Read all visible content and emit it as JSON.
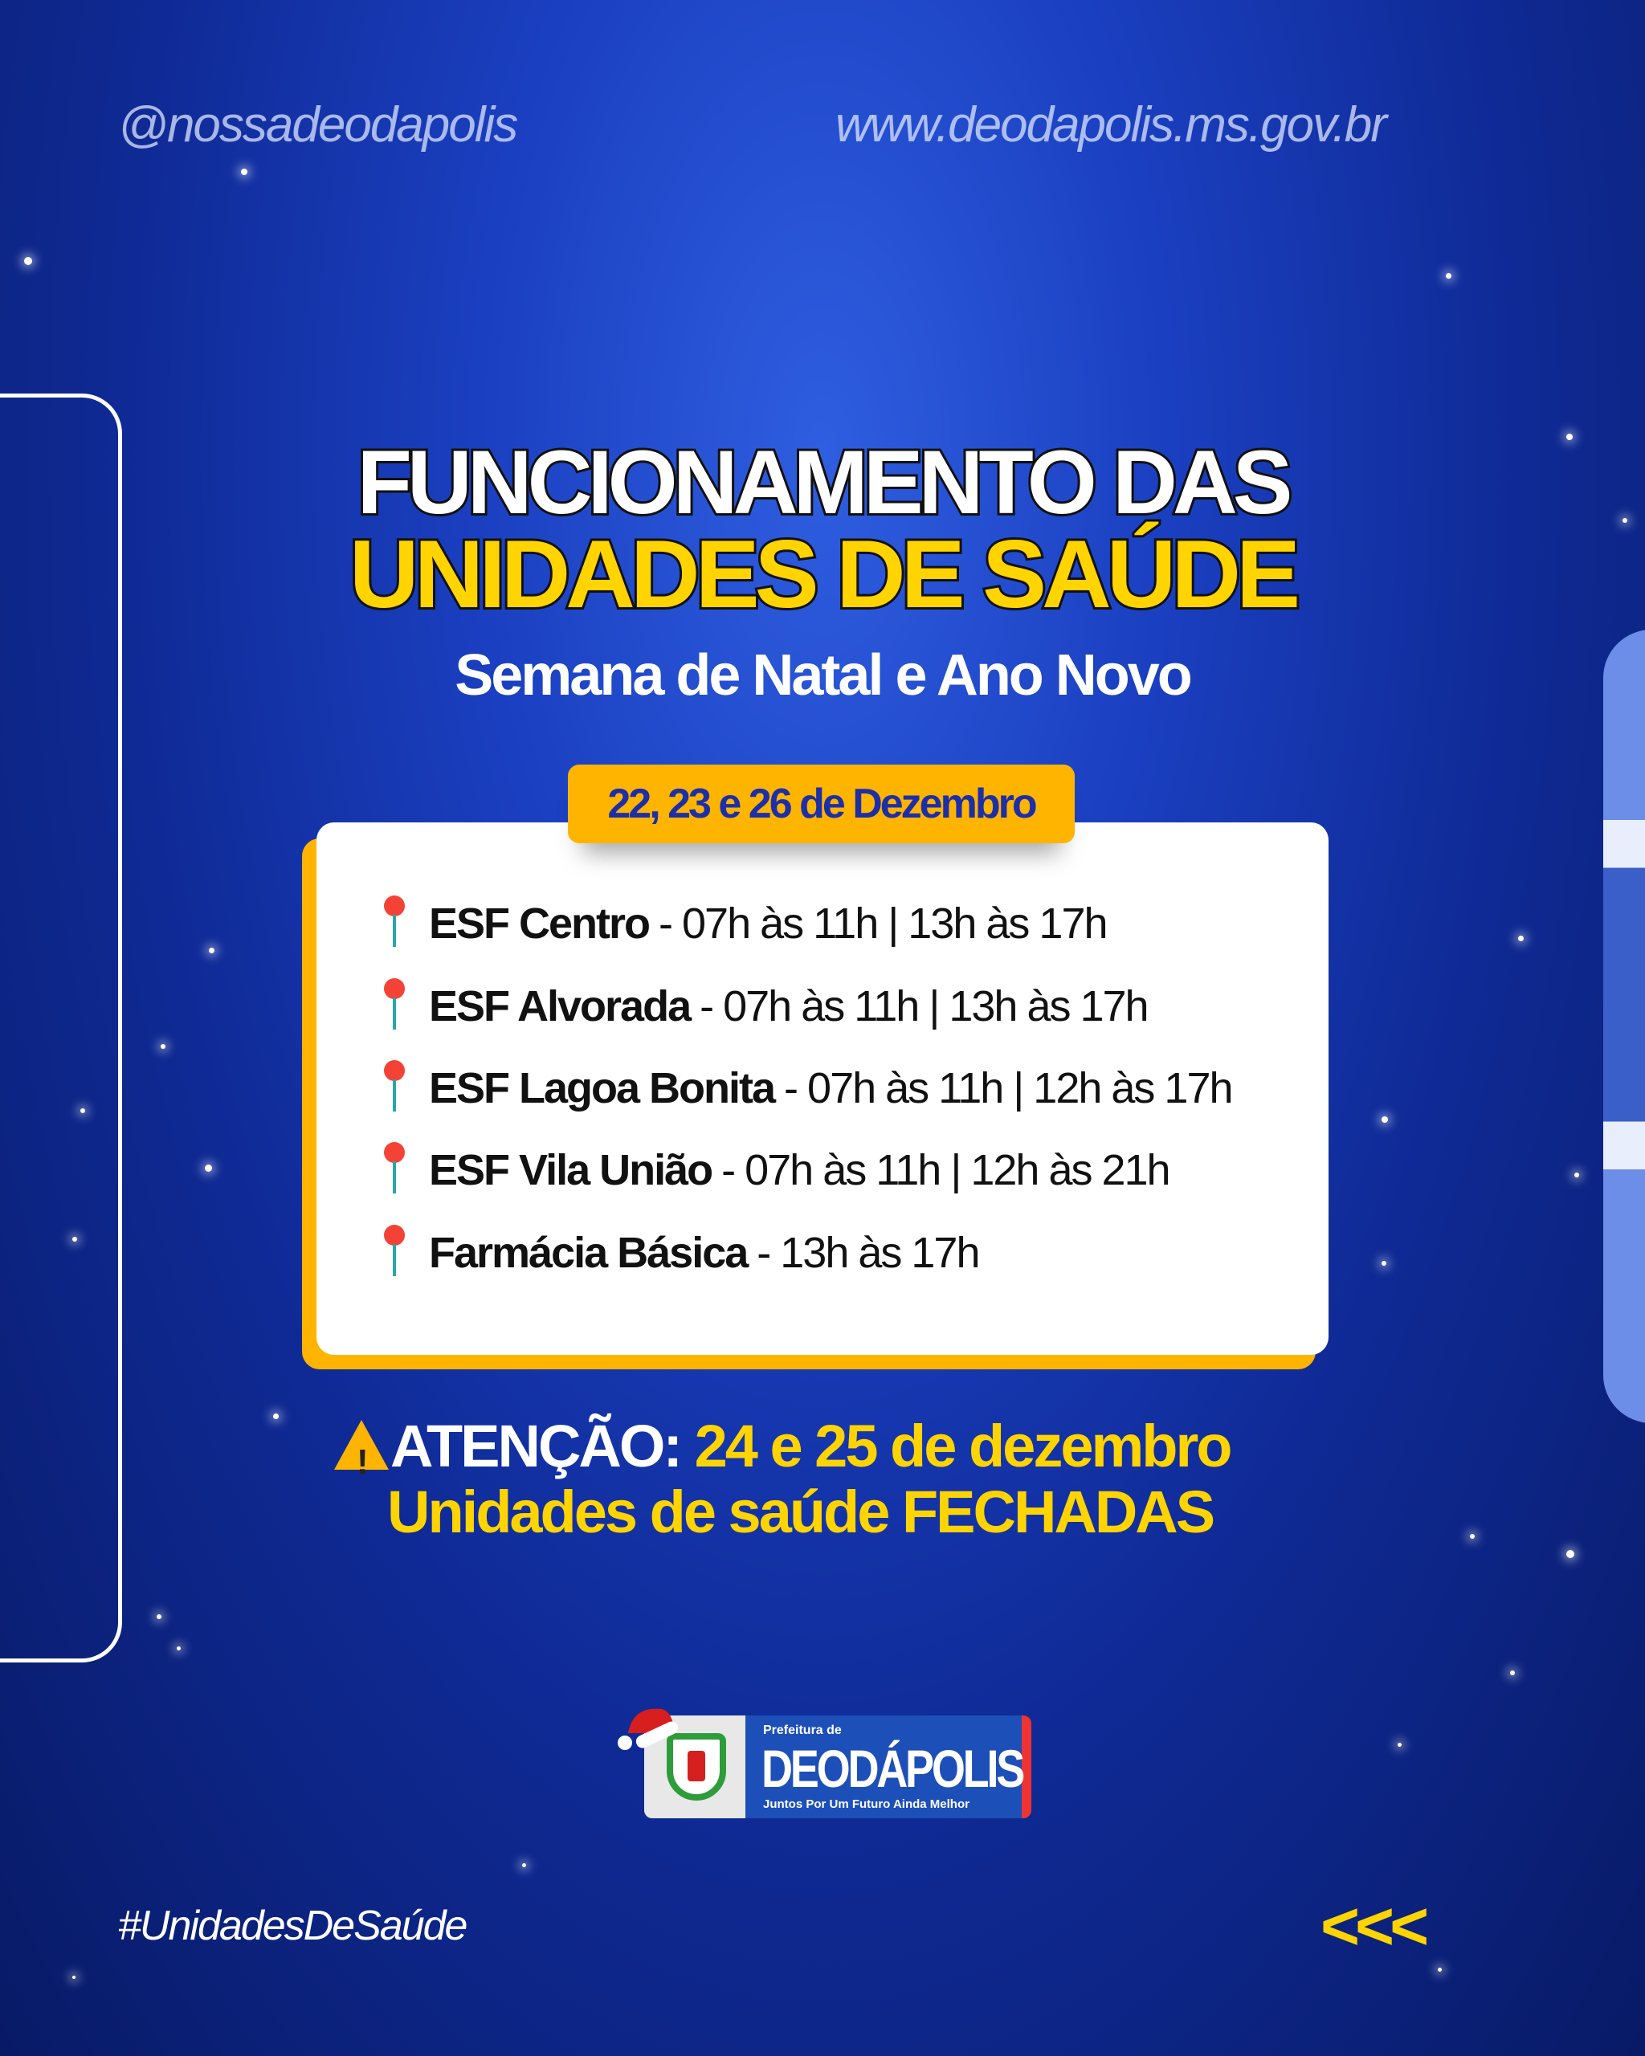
{
  "header": {
    "social_handle": "@nossadeodapolis",
    "website": "www.deodapolis.ms.gov.br"
  },
  "title": {
    "line1": "FUNCIONAMENTO DAS",
    "line2": "UNIDADES DE SAÚDE",
    "subtitle": "Semana de Natal e Ano Novo"
  },
  "schedule": {
    "date_label": "22, 23 e 26 de Dezembro",
    "icon": "round-pushpin-icon",
    "items": [
      {
        "name": "ESF Centro",
        "hours": "- 07h às 11h | 13h às 17h"
      },
      {
        "name": "ESF Alvorada",
        "hours": "- 07h às 11h | 13h às 17h"
      },
      {
        "name": "ESF Lagoa Bonita",
        "hours": "- 07h às 11h | 12h às 17h"
      },
      {
        "name": "ESF Vila União",
        "hours": "- 07h às 11h | 12h às 21h"
      },
      {
        "name": "Farmácia Básica",
        "hours": "- 13h às 17h"
      }
    ]
  },
  "notice": {
    "icon": "warning-icon",
    "label": "ATENÇÃO:",
    "dates": "24 e 25 de dezembro",
    "message": "Unidades de saúde FECHADAS"
  },
  "logo": {
    "prefix": "Prefeitura de",
    "name": "DEODÁPOLIS",
    "tagline": "Juntos Por Um Futuro Ainda Melhor"
  },
  "footer": {
    "hashtag": "#UnidadesDeSaúde",
    "arrows": "<<<"
  },
  "colors": {
    "background": "#1a3fc0",
    "accent_yellow": "#ffd400",
    "pill_orange": "#ffb400",
    "date_text": "#1d2fa8"
  }
}
